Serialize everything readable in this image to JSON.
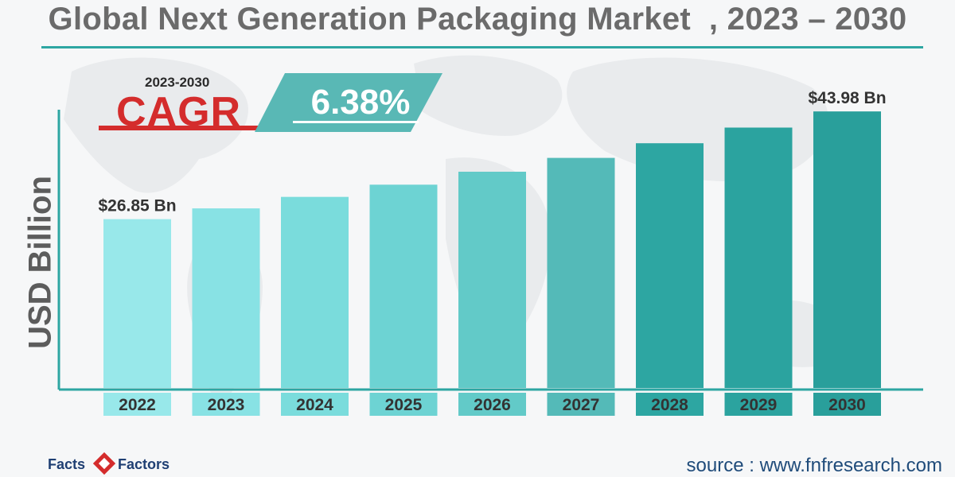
{
  "title": "Global Next Generation Packaging Market  , 2023 – 2030",
  "cagr": {
    "years": "2023-2030",
    "label": "CAGR",
    "value": "6.38%"
  },
  "logo": {
    "left": "Facts",
    "right": "Factors"
  },
  "source": "source : www.fnfresearch.com",
  "colors": {
    "title": "#6b6b6b",
    "accent": "#2da6a2",
    "cagr_red": "#d42c2c",
    "cagr_teal": "#59b8b5",
    "logo": "#1f3f73"
  },
  "chart_data": {
    "type": "bar",
    "title": "Global Next Generation Packaging Market  , 2023 – 2030",
    "xlabel": "",
    "ylabel": "USD Billion",
    "categories": [
      "2022",
      "2023",
      "2024",
      "2025",
      "2026",
      "2027",
      "2028",
      "2029",
      "2030"
    ],
    "values": [
      26.85,
      28.56,
      30.39,
      32.33,
      34.39,
      36.59,
      38.92,
      41.41,
      43.98
    ],
    "value_labels": [
      "$26.85 Bn",
      "",
      "",
      "",
      "",
      "",
      "",
      "",
      "$43.98 Bn"
    ],
    "bar_colors": [
      "#98e8ea",
      "#88e2e4",
      "#7adcdc",
      "#6dd3d3",
      "#62cac8",
      "#54bab8",
      "#2da6a2",
      "#2ba39f",
      "#299f9b"
    ],
    "label_colors": [
      "#98e8ea",
      "#88e2e4",
      "#7adcdc",
      "#6dd3d3",
      "#62cac8",
      "#54bab8",
      "#2da6a2",
      "#2ba39f",
      "#299f9b"
    ],
    "ylim": [
      0,
      44
    ],
    "grid": false
  }
}
